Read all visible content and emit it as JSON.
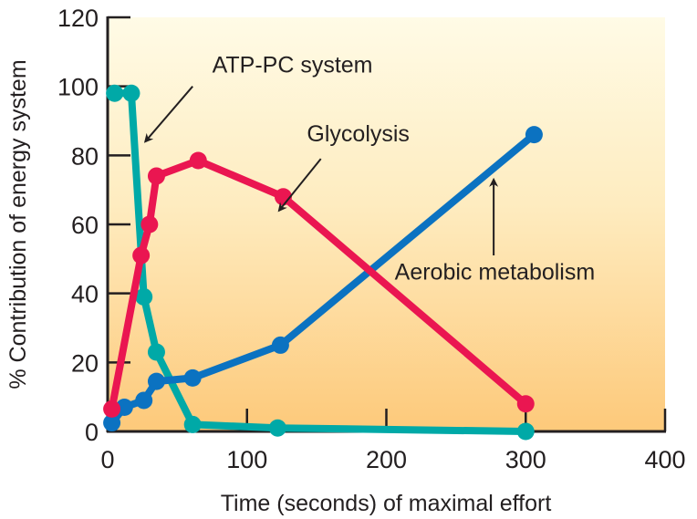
{
  "chart_data": {
    "type": "line",
    "title": "",
    "xlabel": "Time (seconds) of maximal effort",
    "ylabel": "% Contribution of energy system",
    "xlim": [
      0,
      400
    ],
    "ylim": [
      0,
      120
    ],
    "xticks": [
      0,
      100,
      200,
      300,
      400
    ],
    "yticks": [
      0,
      20,
      40,
      60,
      80,
      100,
      120
    ],
    "xtick_labels": [
      "0",
      "100",
      "200",
      "300",
      "400"
    ],
    "ytick_labels": [
      "0",
      "20",
      "40",
      "60",
      "80",
      "100",
      "120"
    ],
    "grid": false,
    "background": {
      "top_color": "#fffbe6",
      "bottom_color": "#fdc97a"
    },
    "series": [
      {
        "name": "ATP-PC system",
        "color": "#00a9a7",
        "x": [
          5,
          17,
          26,
          35,
          61,
          122,
          300
        ],
        "y": [
          98,
          98,
          39,
          23,
          2,
          1,
          0
        ]
      },
      {
        "name": "Aerobic metabolism",
        "color": "#0b72c1",
        "x": [
          3,
          12,
          26,
          35,
          61,
          124,
          306
        ],
        "y": [
          2.5,
          7,
          9,
          14.5,
          15.5,
          25,
          86
        ]
      },
      {
        "name": "Glycolysis",
        "color": "#ea1651",
        "x": [
          3,
          24,
          30,
          35,
          65,
          126,
          300
        ],
        "y": [
          6.5,
          51,
          60,
          74,
          78.5,
          68,
          8
        ]
      }
    ],
    "annotations": [
      {
        "text": "ATP-PC system",
        "label_at": [
          75,
          104
        ],
        "arrow_from": [
          61,
          100
        ],
        "arrow_to": [
          27,
          84
        ],
        "target_series": "ATP-PC system"
      },
      {
        "text": "Glycolysis",
        "label_at": [
          143,
          84
        ],
        "arrow_from": [
          153,
          79
        ],
        "arrow_to": [
          123,
          64
        ],
        "target_series": "Glycolysis"
      },
      {
        "text": "Aerobic metabolism",
        "label_at": [
          206,
          44
        ],
        "arrow_from": [
          277,
          51
        ],
        "arrow_to": [
          277,
          73
        ],
        "target_series": "Aerobic metabolism"
      }
    ],
    "legend": "none (inline annotations with arrows)"
  }
}
